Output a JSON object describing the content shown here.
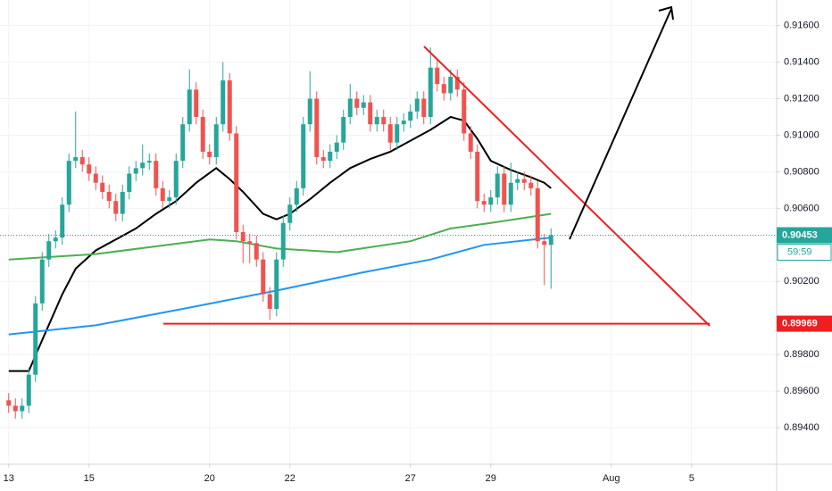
{
  "chart_data": {
    "type": "candlestick",
    "up_color": "#26a69a",
    "down_color": "#ef5350",
    "open": [
      0.8955,
      0.8952,
      0.8949,
      0.8952,
      0.8969,
      0.9008,
      0.9032,
      0.9042,
      0.9044,
      0.9062,
      0.9086,
      0.9088,
      0.9084,
      0.9079,
      0.9074,
      0.9069,
      0.9064,
      0.9057,
      0.9069,
      0.9079,
      0.9082,
      0.9085,
      0.9086,
      0.9071,
      0.9064,
      0.9066,
      0.9086,
      0.9106,
      0.9125,
      0.911,
      0.9091,
      0.9088,
      0.9106,
      0.913,
      0.9101,
      0.9047,
      0.9042,
      0.9041,
      0.9032,
      0.9013,
      0.9005,
      0.9032,
      0.9052,
      0.9062,
      0.9071,
      0.9106,
      0.912,
      0.9088,
      0.9086,
      0.9091,
      0.9096,
      0.911,
      0.912,
      0.9115,
      0.9118,
      0.9106,
      0.911,
      0.9106,
      0.9096,
      0.9106,
      0.9108,
      0.9113,
      0.912,
      0.911,
      0.9137,
      0.9128,
      0.9123,
      0.9132,
      0.9125,
      0.9101,
      0.9091,
      0.9064,
      0.9062,
      0.9066,
      0.9079,
      0.9062,
      0.9074,
      0.9076,
      0.9074,
      0.9071,
      0.9042,
      0.904
    ],
    "high": [
      0.8959,
      0.8956,
      0.8956,
      0.8973,
      0.9012,
      0.9036,
      0.9046,
      0.9048,
      0.9066,
      0.909,
      0.9113,
      0.9092,
      0.9088,
      0.9083,
      0.9078,
      0.9073,
      0.9068,
      0.9073,
      0.9083,
      0.9086,
      0.9095,
      0.909,
      0.909,
      0.9075,
      0.907,
      0.909,
      0.911,
      0.9136,
      0.9129,
      0.9114,
      0.9095,
      0.911,
      0.914,
      0.9134,
      0.9105,
      0.9051,
      0.9046,
      0.9045,
      0.9036,
      0.9017,
      0.9036,
      0.9056,
      0.9066,
      0.9075,
      0.911,
      0.9135,
      0.9124,
      0.9092,
      0.9095,
      0.91,
      0.9114,
      0.9128,
      0.9124,
      0.9122,
      0.9122,
      0.9114,
      0.9114,
      0.911,
      0.911,
      0.9112,
      0.9117,
      0.9124,
      0.9124,
      0.9148,
      0.9141,
      0.9132,
      0.9136,
      0.9136,
      0.9129,
      0.9105,
      0.9095,
      0.9068,
      0.907,
      0.9083,
      0.9083,
      0.9085,
      0.908,
      0.908,
      0.9078,
      0.9075,
      0.9046,
      0.9049
    ],
    "low": [
      0.8948,
      0.8945,
      0.8945,
      0.8948,
      0.8965,
      0.9004,
      0.9028,
      0.9038,
      0.904,
      0.9058,
      0.9082,
      0.908,
      0.9075,
      0.907,
      0.9065,
      0.906,
      0.9053,
      0.9053,
      0.9065,
      0.9075,
      0.9078,
      0.9081,
      0.9067,
      0.906,
      0.906,
      0.9062,
      0.9082,
      0.9102,
      0.9106,
      0.9087,
      0.9084,
      0.9084,
      0.9102,
      0.9097,
      0.9043,
      0.903,
      0.903,
      0.9028,
      0.9009,
      0.8999,
      0.9001,
      0.9028,
      0.9048,
      0.9058,
      0.9067,
      0.9102,
      0.9084,
      0.9082,
      0.9082,
      0.9087,
      0.9092,
      0.9106,
      0.9111,
      0.9111,
      0.9102,
      0.9102,
      0.9102,
      0.9092,
      0.9092,
      0.9102,
      0.9104,
      0.9109,
      0.9106,
      0.9106,
      0.9124,
      0.9119,
      0.9119,
      0.9121,
      0.9097,
      0.9087,
      0.906,
      0.9058,
      0.9058,
      0.9062,
      0.9058,
      0.9058,
      0.907,
      0.907,
      0.9067,
      0.9038,
      0.9018,
      0.9016
    ],
    "close": [
      0.8952,
      0.8949,
      0.8952,
      0.8969,
      0.9008,
      0.9032,
      0.9042,
      0.9044,
      0.9062,
      0.9086,
      0.9088,
      0.9084,
      0.9079,
      0.9074,
      0.9069,
      0.9064,
      0.9057,
      0.9069,
      0.9079,
      0.9082,
      0.9085,
      0.9086,
      0.9071,
      0.9064,
      0.9066,
      0.9086,
      0.9106,
      0.9125,
      0.911,
      0.9091,
      0.9088,
      0.9106,
      0.913,
      0.9101,
      0.9047,
      0.9042,
      0.9041,
      0.9032,
      0.9013,
      0.9005,
      0.9032,
      0.9052,
      0.9062,
      0.9071,
      0.9106,
      0.912,
      0.9088,
      0.9086,
      0.9091,
      0.9096,
      0.911,
      0.912,
      0.9115,
      0.9118,
      0.9106,
      0.911,
      0.9106,
      0.9096,
      0.9106,
      0.9108,
      0.9113,
      0.912,
      0.911,
      0.9137,
      0.9128,
      0.9123,
      0.9132,
      0.9125,
      0.9101,
      0.9091,
      0.9064,
      0.9062,
      0.9066,
      0.9079,
      0.9062,
      0.9074,
      0.9076,
      0.9074,
      0.9071,
      0.9042,
      0.904,
      0.90453
    ],
    "moving_averages": [
      {
        "color": "#000000",
        "x": [
          0,
          3,
          5,
          8,
          10,
          13,
          16,
          19,
          22,
          25,
          28,
          31,
          33,
          35,
          38,
          40,
          42,
          45,
          48,
          51,
          54,
          57,
          60,
          63,
          66,
          68,
          70,
          72,
          75,
          78,
          80,
          81
        ],
        "values": [
          0.8971,
          0.8971,
          0.8988,
          0.9013,
          0.9027,
          0.9037,
          0.9043,
          0.9049,
          0.9057,
          0.9064,
          0.9074,
          0.9082,
          0.9076,
          0.9069,
          0.9057,
          0.9054,
          0.9057,
          0.9065,
          0.9074,
          0.9082,
          0.9087,
          0.9091,
          0.9097,
          0.9103,
          0.911,
          0.9108,
          0.9098,
          0.9086,
          0.9081,
          0.9077,
          0.9074,
          0.9071
        ]
      },
      {
        "color": "#4caf50",
        "x": [
          0,
          13,
          30,
          34,
          40,
          49,
          60,
          66,
          72,
          81
        ],
        "values": [
          0.9032,
          0.9035,
          0.9043,
          0.9042,
          0.9038,
          0.9036,
          0.9042,
          0.9049,
          0.9052,
          0.9057
        ]
      },
      {
        "color": "#2196f3",
        "x": [
          0,
          13,
          26,
          40,
          53,
          63,
          71,
          81
        ],
        "values": [
          0.8991,
          0.8996,
          0.9005,
          0.9015,
          0.9025,
          0.9032,
          0.904,
          0.9044
        ]
      }
    ],
    "last_price": 0.90453,
    "countdown": "59:59",
    "level": 0.89969,
    "xlim": [
      -1.3,
      114.7
    ],
    "ylim": [
      0.892,
      0.9174
    ],
    "xticks": [
      {
        "value": 0,
        "label": "13"
      },
      {
        "value": 12,
        "label": "15"
      },
      {
        "value": 30,
        "label": "20"
      },
      {
        "value": 42,
        "label": "22"
      },
      {
        "value": 60,
        "label": "27"
      },
      {
        "value": 72,
        "label": "29"
      },
      {
        "value": 90,
        "label": "Aug"
      },
      {
        "value": 102,
        "label": "5"
      }
    ],
    "yticks": [
      {
        "value": 0.916,
        "label": "0.91600"
      },
      {
        "value": 0.914,
        "label": "0.91400"
      },
      {
        "value": 0.912,
        "label": "0.91200"
      },
      {
        "value": 0.91,
        "label": "0.91000"
      },
      {
        "value": 0.908,
        "label": "0.90800"
      },
      {
        "value": 0.906,
        "label": "0.90600"
      },
      {
        "value": 0.902,
        "label": "0.90200"
      },
      {
        "value": 0.898,
        "label": "0.89800"
      },
      {
        "value": 0.896,
        "label": "0.89600"
      },
      {
        "value": 0.894,
        "label": "0.89400"
      }
    ],
    "grid": true
  }
}
